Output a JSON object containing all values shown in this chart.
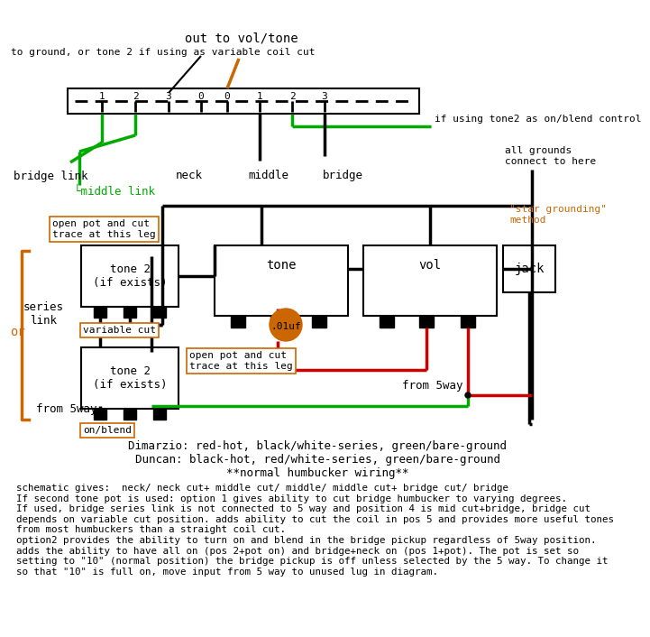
{
  "bg_color": "#ffffff",
  "orange_color": "#cc6600",
  "green_color": "#00aa00",
  "red_color": "#cc0000",
  "black_color": "#000000",
  "center_text": "Dimarzio: red-hot, black/white-series, green/bare-ground\nDuncan: black-hot, red/white-series, green/bare-ground\n**normal humbucker wiring**",
  "bottom_text": "schematic gives:  neck/ neck cut+ middle cut/ middle/ middle cut+ bridge cut/ bridge\nIf second tone pot is used: option 1 gives ability to cut bridge humbucker to varying degrees.\nIf used, bridge series link is not connected to 5 way and position 4 is mid cut+bridge, bridge cut\ndepends on variable cut position. adds ability to cut the coil in pos 5 and provides more useful tones\nfrom most humbuckers than a straight coil cut.\noption2 provides the ability to turn on and blend in the bridge pickup regardless of 5way position.\nadds the ability to have all on (pos 2+pot on) and bridge+neck on (pos 1+pot). The pot is set so\nsetting to \"10\" (normal position) the bridge pickup is off unless selected by the 5 way. To change it\nso that \"10\" is full on, move input from 5 way to unused lug in diagram.",
  "label_top_left": "to ground, or tone 2 if using as variable coil cut",
  "label_out": "out to vol/tone",
  "label_tone2_control": "if using tone2 as on/blend control",
  "label_bridge_link": "bridge link",
  "label_middle_link": "└middle link",
  "label_neck": "neck",
  "label_middle": "middle",
  "label_bridge": "bridge",
  "label_all_grounds": "all grounds\nconnect to here",
  "label_star_grounding": "\"star grounding\"\nmethod",
  "label_series_link": "series\nlink",
  "label_or": "or",
  "label_variable_cut": "variable cut",
  "label_on_blend": "on/blend",
  "label_from_5way_1": "from 5way",
  "label_from_5way_2": "from 5way",
  "label_open_pot_1": "open pot and cut\ntrace at this leg",
  "label_open_pot_2": "open pot and cut\ntrace at this leg",
  "label_tone2_exists_1": "tone 2\n(if exists)",
  "label_tone2_exists_2": "tone 2\n(if exists)",
  "label_tone": "tone",
  "label_vol": "vol",
  "label_jack": "jack",
  "label_cap": ".01uf"
}
